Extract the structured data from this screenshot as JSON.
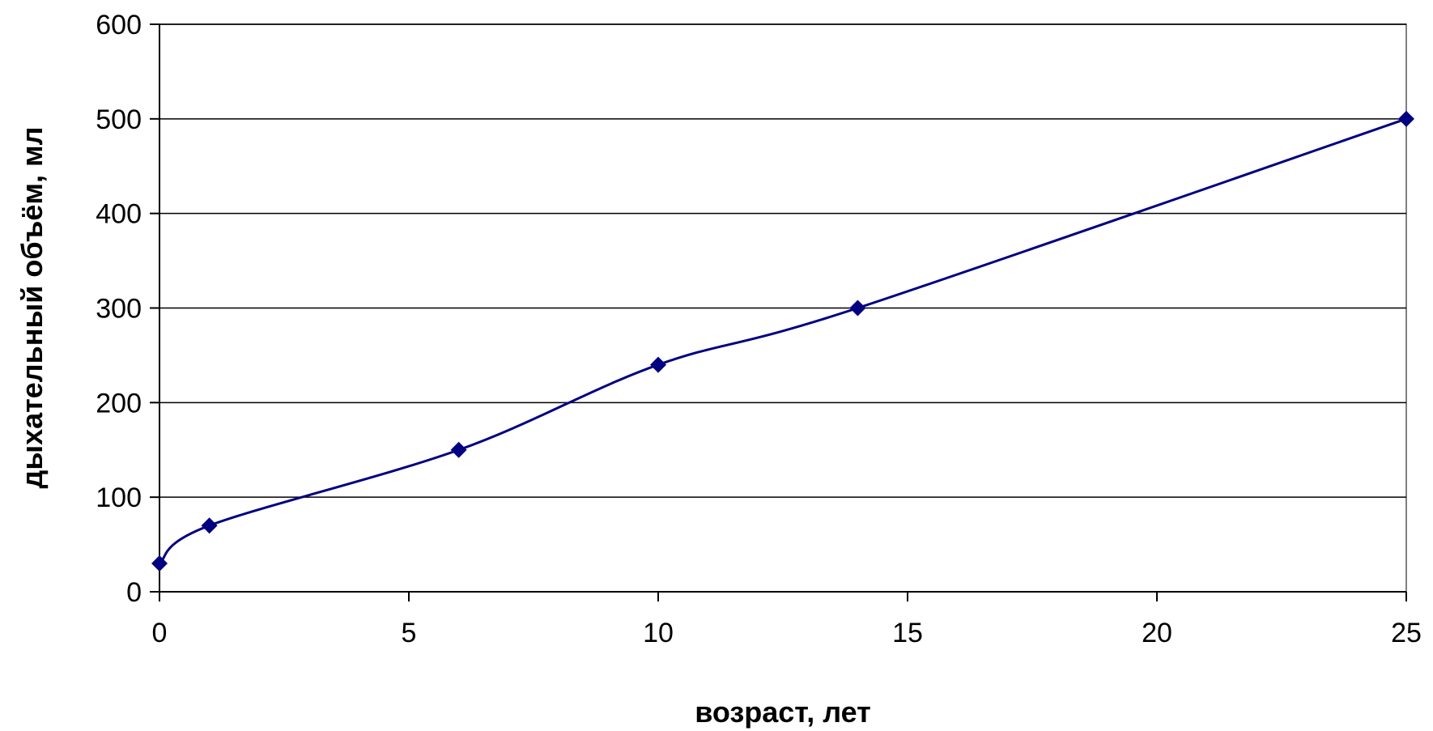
{
  "chart_data": {
    "type": "line",
    "title": "",
    "xlabel": "возраст, лет",
    "ylabel": "дыхательный объём, мл",
    "xlim": [
      0,
      25
    ],
    "ylim": [
      0,
      600
    ],
    "x_ticks": [
      0,
      5,
      10,
      15,
      20,
      25
    ],
    "y_ticks": [
      0,
      100,
      200,
      300,
      400,
      500,
      600
    ],
    "x_tick_labels": [
      "0",
      "5",
      "10",
      "15",
      "20",
      "25"
    ],
    "y_tick_labels": [
      "0",
      "100",
      "200",
      "300",
      "400",
      "500",
      "600"
    ],
    "grid": "horizontal",
    "legend": "none",
    "smooth": true,
    "series": [
      {
        "x": [
          0,
          1,
          6,
          10,
          14,
          25
        ],
        "y": [
          30,
          70,
          150,
          240,
          300,
          500
        ],
        "color": "#000080",
        "marker": "diamond"
      }
    ]
  }
}
